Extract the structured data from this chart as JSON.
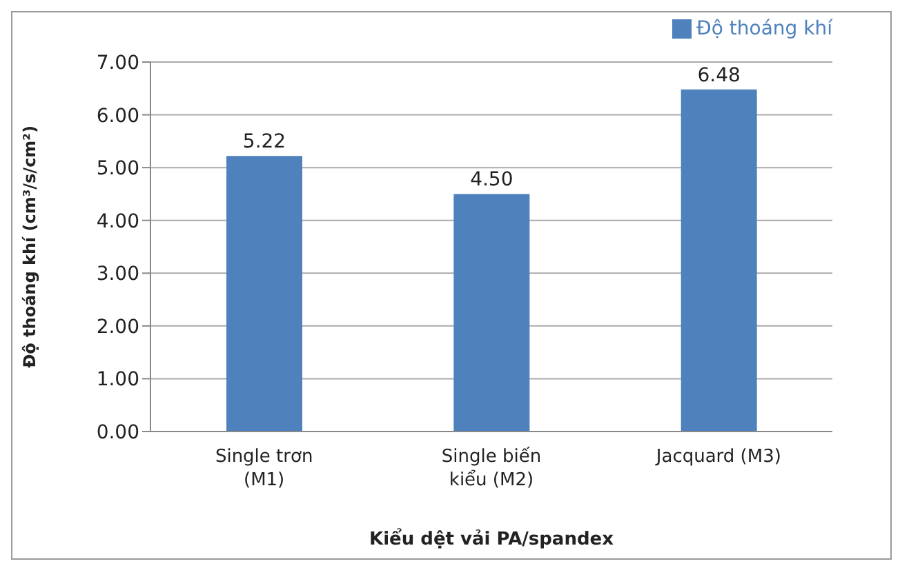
{
  "chart_data": {
    "type": "bar",
    "xlabel": "Kiểu dệt vải PA/spandex",
    "ylabel": "Độ thoáng khí (cm³/s/cm²)",
    "categories": [
      "Single trơn (M1)",
      "Single biến kiểu (M2)",
      "Jacquard (M3)"
    ],
    "series": [
      {
        "name": "Độ thoáng khí",
        "color": "#4f81bd",
        "values": [
          5.22,
          4.5,
          6.48
        ],
        "value_labels": [
          "5.22",
          "4.50",
          "6.48"
        ]
      }
    ],
    "ylim": [
      0,
      7
    ],
    "yticks": [
      {
        "value": 0,
        "label": "0.00"
      },
      {
        "value": 1,
        "label": "1.00"
      },
      {
        "value": 2,
        "label": "2.00"
      },
      {
        "value": 3,
        "label": "3.00"
      },
      {
        "value": 4,
        "label": "4.00"
      },
      {
        "value": 5,
        "label": "5.00"
      },
      {
        "value": 6,
        "label": "6.00"
      },
      {
        "value": 7,
        "label": "7.00"
      }
    ],
    "grid": "y",
    "legend": "top right"
  }
}
